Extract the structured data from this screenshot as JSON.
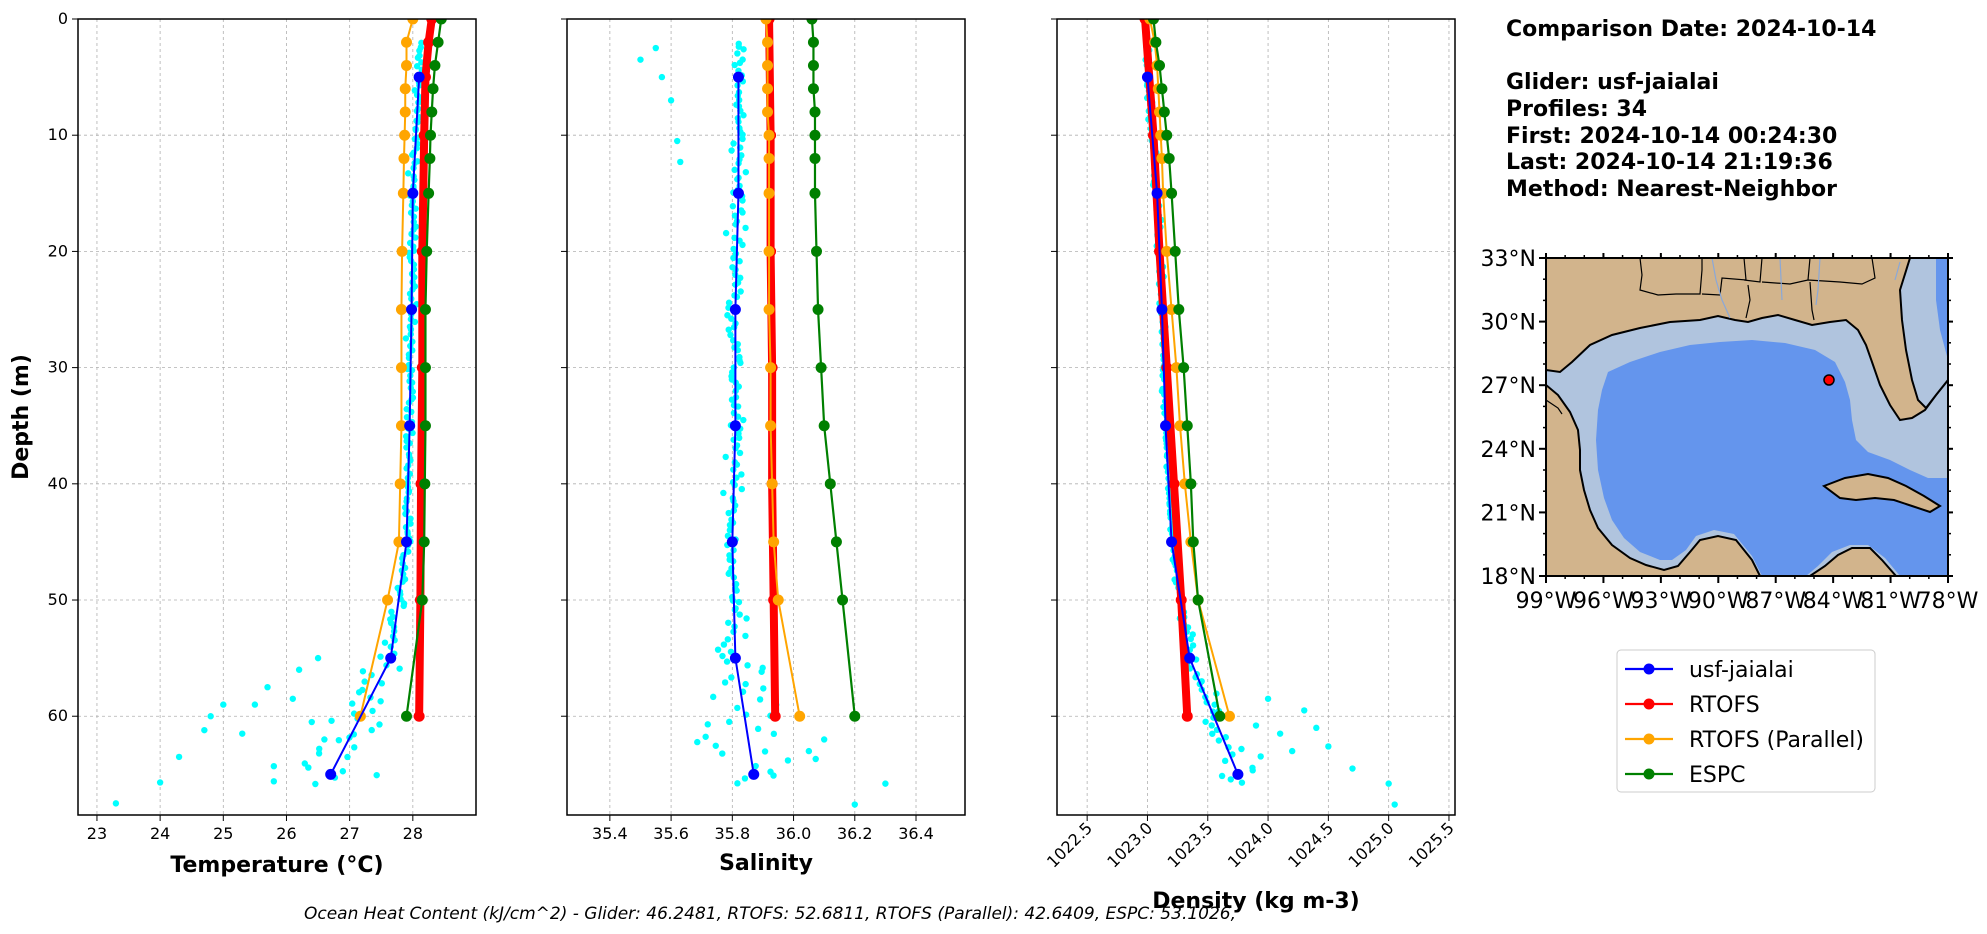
{
  "info": {
    "comparison": "Comparison Date: 2024-10-14",
    "glider": "Glider: usf-jaialai",
    "profiles": "Profiles: 34",
    "first": "First: 2024-10-14 00:24:30",
    "last": "Last: 2024-10-14 21:19:36",
    "method": "Method: Nearest-Neighbor"
  },
  "footer": "Ocean Heat Content (kJ/cm^2) - Glider: 46.2481,  RTOFS: 52.6811,  RTOFS (Parallel): 42.6409,  ESPC: 53.1026,",
  "colors": {
    "glider_scatter": "#00ffff",
    "glider": "#0000ff",
    "rtofs": "#ff0000",
    "rtofs_parallel": "#ffa500",
    "espc": "#008000",
    "land": "#d2b48c",
    "shelf": "#b0c4de",
    "deep": "#6495ed"
  },
  "legend": [
    "usf-jaialai",
    "RTOFS",
    "RTOFS (Parallel)",
    "ESPC"
  ],
  "chart_data": [
    {
      "type": "line",
      "id": "temperature",
      "xlabel": "Temperature (°C)",
      "ylabel": "Depth (m)",
      "xlim": [
        22.7,
        29.0
      ],
      "ylim": [
        68.5,
        0
      ],
      "x_ticks": [
        23,
        24,
        25,
        26,
        27,
        28
      ],
      "y_ticks": [
        0,
        10,
        20,
        30,
        40,
        50,
        60
      ],
      "grid": true,
      "series": [
        {
          "name": "usf-jaialai",
          "depth": [
            5,
            15,
            25,
            35,
            45,
            55,
            65
          ],
          "values": [
            28.1,
            28.0,
            27.98,
            27.95,
            27.9,
            27.65,
            26.7
          ]
        },
        {
          "name": "RTOFS",
          "depth": [
            0,
            2,
            5,
            10,
            20,
            30,
            40,
            50,
            60
          ],
          "values": [
            28.3,
            28.25,
            28.2,
            28.18,
            28.15,
            28.15,
            28.13,
            28.12,
            28.1
          ]
        },
        {
          "name": "RTOFS (Parallel)",
          "depth": [
            0,
            2,
            4,
            6,
            8,
            10,
            12,
            15,
            20,
            25,
            30,
            35,
            40,
            45,
            50,
            60
          ],
          "values": [
            28.0,
            27.9,
            27.9,
            27.88,
            27.88,
            27.87,
            27.86,
            27.85,
            27.83,
            27.82,
            27.82,
            27.82,
            27.8,
            27.78,
            27.6,
            27.17
          ]
        },
        {
          "name": "ESPC",
          "depth": [
            0,
            2,
            4,
            6,
            8,
            10,
            12,
            15,
            20,
            25,
            30,
            35,
            40,
            45,
            50,
            60
          ],
          "values": [
            28.45,
            28.4,
            28.35,
            28.32,
            28.3,
            28.28,
            28.27,
            28.25,
            28.22,
            28.2,
            28.2,
            28.2,
            28.19,
            28.18,
            28.15,
            27.9
          ]
        }
      ]
    },
    {
      "type": "line",
      "id": "salinity",
      "xlabel": "Salinity",
      "xlim": [
        35.26,
        36.56
      ],
      "ylim": [
        68.5,
        0
      ],
      "x_ticks": [
        35.4,
        35.6,
        35.8,
        36.0,
        36.2,
        36.4
      ],
      "grid": true,
      "series": [
        {
          "name": "usf-jaialai",
          "depth": [
            5,
            15,
            25,
            35,
            45,
            55,
            65
          ],
          "values": [
            35.82,
            35.82,
            35.81,
            35.81,
            35.8,
            35.81,
            35.87
          ]
        },
        {
          "name": "RTOFS",
          "depth": [
            0,
            10,
            20,
            30,
            40,
            50,
            60
          ],
          "values": [
            35.92,
            35.925,
            35.925,
            35.93,
            35.93,
            35.935,
            35.94
          ]
        },
        {
          "name": "RTOFS (Parallel)",
          "depth": [
            0,
            2,
            4,
            6,
            8,
            10,
            12,
            15,
            20,
            25,
            30,
            35,
            40,
            45,
            50,
            60
          ],
          "values": [
            35.91,
            35.915,
            35.915,
            35.915,
            35.915,
            35.92,
            35.92,
            35.92,
            35.92,
            35.92,
            35.925,
            35.925,
            35.93,
            35.935,
            35.95,
            36.02
          ]
        },
        {
          "name": "ESPC",
          "depth": [
            0,
            2,
            4,
            6,
            8,
            10,
            12,
            15,
            20,
            25,
            30,
            35,
            40,
            45,
            50,
            60
          ],
          "values": [
            36.06,
            36.065,
            36.065,
            36.065,
            36.07,
            36.07,
            36.07,
            36.07,
            36.075,
            36.08,
            36.09,
            36.1,
            36.12,
            36.14,
            36.16,
            36.2
          ]
        }
      ]
    },
    {
      "type": "line",
      "id": "density",
      "xlabel": "Density (kg m-3)",
      "xlim": [
        1022.25,
        1025.55
      ],
      "ylim": [
        68.5,
        0
      ],
      "x_ticks": [
        "1022.5",
        "1023.0",
        "1023.5",
        "1024.0",
        "1024.5",
        "1025.0",
        "1025.5"
      ],
      "grid": true,
      "series": [
        {
          "name": "usf-jaialai",
          "depth": [
            5,
            15,
            25,
            35,
            45,
            55,
            65
          ],
          "values": [
            1023.0,
            1023.08,
            1023.12,
            1023.15,
            1023.2,
            1023.35,
            1023.75
          ]
        },
        {
          "name": "RTOFS",
          "depth": [
            0,
            10,
            20,
            30,
            40,
            50,
            60
          ],
          "values": [
            1022.98,
            1023.05,
            1023.1,
            1023.16,
            1023.22,
            1023.28,
            1023.33
          ]
        },
        {
          "name": "RTOFS (Parallel)",
          "depth": [
            0,
            2,
            4,
            6,
            8,
            10,
            12,
            15,
            20,
            25,
            30,
            35,
            40,
            45,
            50,
            60
          ],
          "values": [
            1023.02,
            1023.06,
            1023.08,
            1023.09,
            1023.1,
            1023.11,
            1023.12,
            1023.13,
            1023.16,
            1023.2,
            1023.24,
            1023.27,
            1023.31,
            1023.36,
            1023.42,
            1023.68
          ]
        },
        {
          "name": "ESPC",
          "depth": [
            0,
            2,
            4,
            6,
            8,
            10,
            12,
            15,
            20,
            25,
            30,
            35,
            40,
            45,
            50,
            60
          ],
          "values": [
            1023.05,
            1023.07,
            1023.1,
            1023.12,
            1023.14,
            1023.16,
            1023.18,
            1023.2,
            1023.23,
            1023.26,
            1023.3,
            1023.33,
            1023.36,
            1023.38,
            1023.42,
            1023.6
          ]
        }
      ]
    }
  ],
  "map": {
    "lon_ticks": [
      "99°W",
      "96°W",
      "93°W",
      "90°W",
      "87°W",
      "84°W",
      "81°W",
      "78°W"
    ],
    "lat_ticks": [
      "33°N",
      "30°N",
      "27°N",
      "24°N",
      "21°N",
      "18°N"
    ],
    "lon_range": [
      -99,
      -78
    ],
    "lat_range": [
      18,
      33
    ],
    "glider_location": {
      "lon": -83.9,
      "lat": 27.5
    }
  }
}
